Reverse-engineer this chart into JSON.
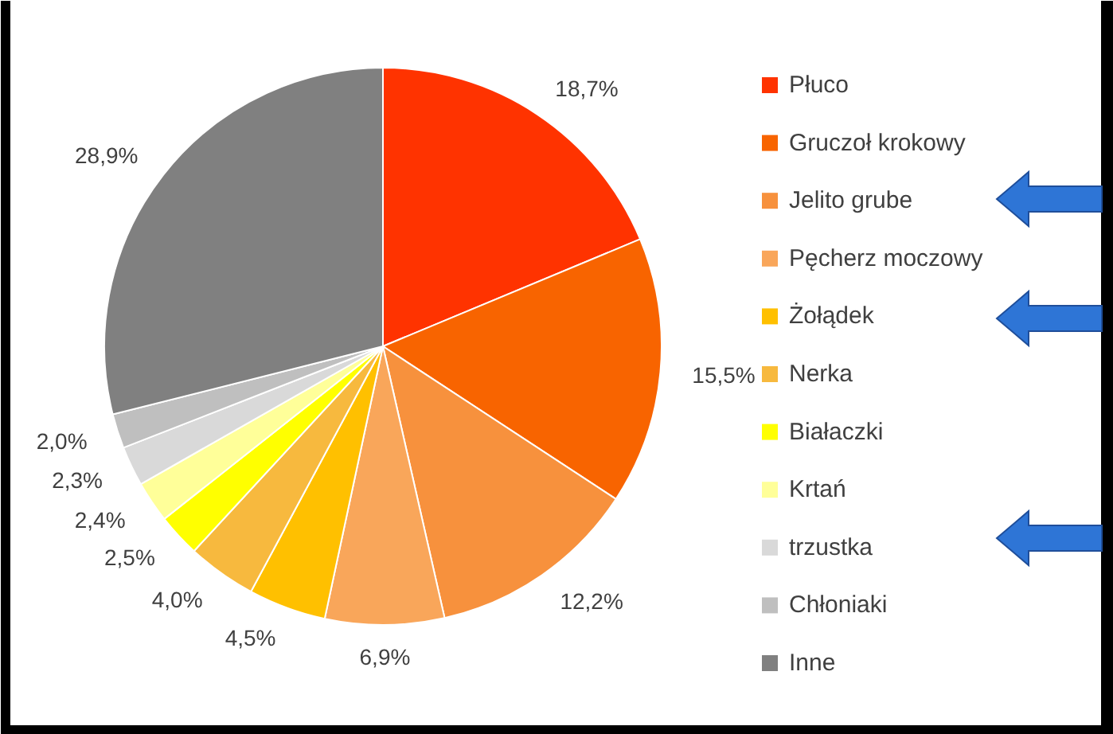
{
  "chart_data": {
    "type": "pie",
    "categories": [
      "Płuco",
      "Gruczoł krokowy",
      "Jelito grube",
      "Pęcherz moczowy",
      "Żołądek",
      "Nerka",
      "Białaczki",
      "Krtań",
      "trzustka",
      "Chłoniaki",
      "Inne"
    ],
    "values": [
      18.7,
      15.5,
      12.2,
      6.9,
      4.5,
      4.0,
      2.5,
      2.4,
      2.3,
      2.0,
      28.9
    ],
    "colors": [
      "#ff3300",
      "#f86400",
      "#f7913d",
      "#f9a65a",
      "#ffc000",
      "#f7b93e",
      "#ffff00",
      "#ffff99",
      "#d9d9d9",
      "#bfbfbf",
      "#808080"
    ],
    "value_labels": [
      "18,7%",
      "15,5%",
      "12,2%",
      "6,9%",
      "4,5%",
      "4,0%",
      "2,5%",
      "2,4%",
      "2,3%",
      "2,0%",
      "28,9%"
    ],
    "legend": "right"
  }
}
